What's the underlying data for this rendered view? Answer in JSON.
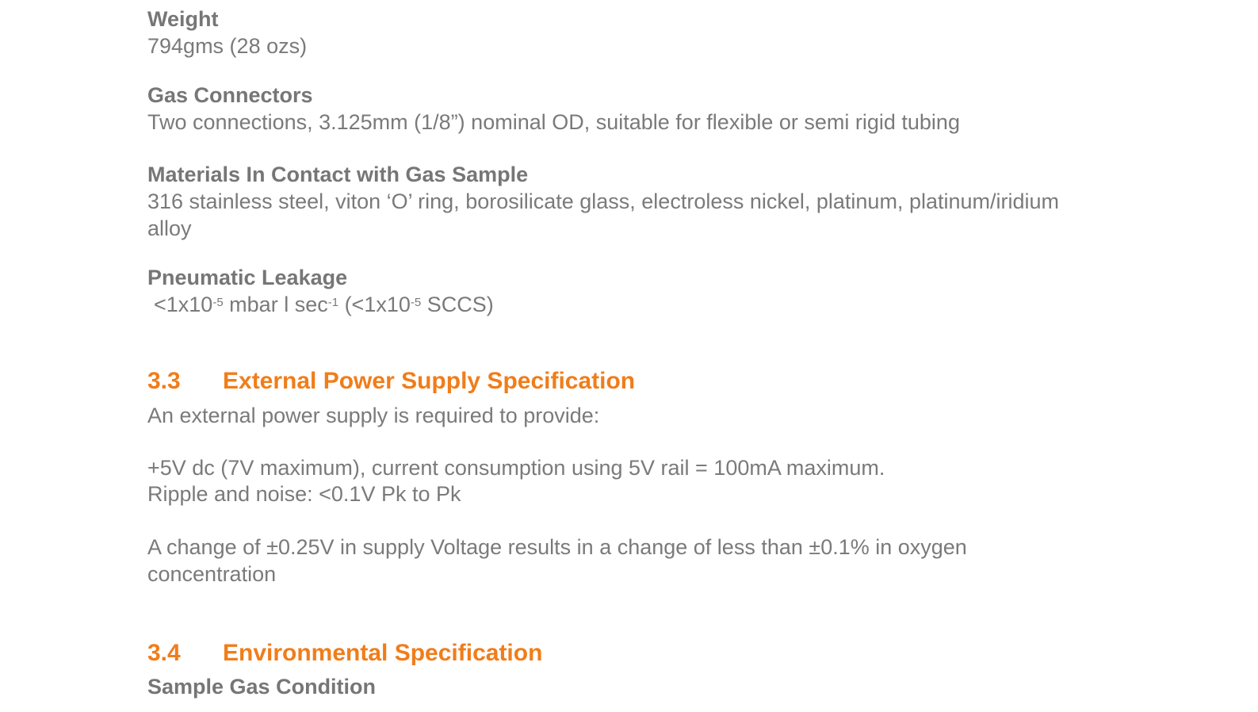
{
  "weight": {
    "label": "Weight",
    "value": "794gms (28 ozs)"
  },
  "gas_connectors": {
    "label": "Gas Connectors",
    "value": "Two connections, 3.125mm (1/8”) nominal OD, suitable for flexible or semi rigid tubing"
  },
  "materials": {
    "label": "Materials In Contact with Gas Sample",
    "line1": "316 stainless steel, viton ‘O’ ring, borosilicate glass, electroless nickel, platinum, platinum/iridium",
    "line2": "alloy"
  },
  "leakage": {
    "label": "Pneumatic Leakage",
    "p1": "<1x10",
    "e1": "-5",
    "p2": " mbar l sec",
    "e2": "-1",
    "p3": " (<1x10",
    "e3": "-5",
    "p4": " SCCS)"
  },
  "section_3_3": {
    "number": "3.3",
    "title": "External Power Supply Specification",
    "intro": "An external power supply is required to provide:",
    "line1": "+5V dc (7V maximum), current consumption using 5V rail = 100mA maximum.",
    "line2": "Ripple and noise: <0.1V Pk to Pk",
    "line3": "A change of ±0.25V in supply Voltage results in a change of less than ±0.1% in oxygen",
    "line4": "concentration"
  },
  "section_3_4": {
    "number": "3.4",
    "title": "Environmental Specification",
    "sub": "Sample Gas Condition"
  },
  "colors": {
    "heading": "#f07d1a",
    "text": "#7a7a7a"
  }
}
